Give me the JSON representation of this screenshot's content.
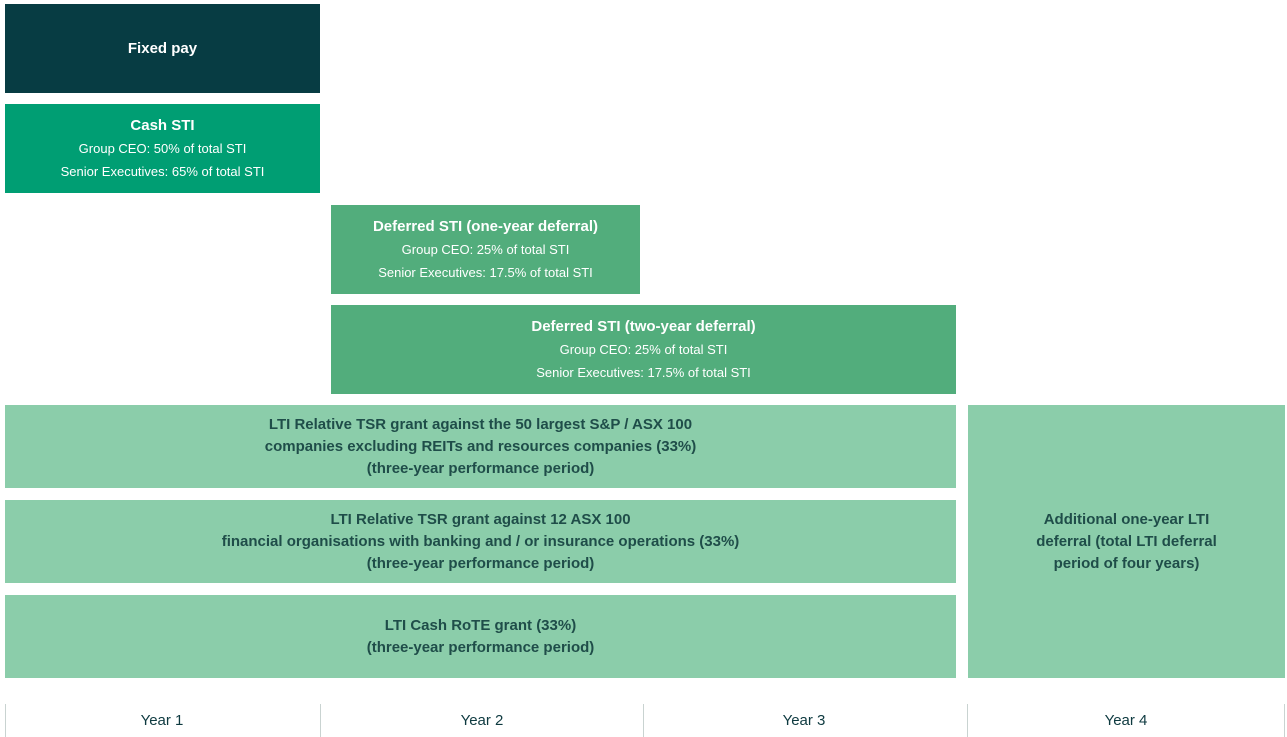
{
  "fixed_pay": {
    "title": "Fixed pay"
  },
  "cash_sti": {
    "title": "Cash STI",
    "lines": [
      "Group CEO: 50% of total STI",
      "Senior Executives: 65% of total STI"
    ]
  },
  "deferred_sti_one": {
    "title": "Deferred STI (one-year deferral)",
    "lines": [
      "Group CEO: 25% of total STI",
      "Senior Executives: 17.5% of total STI"
    ]
  },
  "deferred_sti_two": {
    "title": "Deferred STI (two-year deferral)",
    "lines": [
      "Group CEO: 25% of total STI",
      "Senior Executives: 17.5% of total STI"
    ]
  },
  "lti_tsr_sp": {
    "lines": [
      "LTI Relative TSR grant against the 50 largest S&P / ASX 100",
      "companies excluding REITs and resources companies (33%)",
      "(three-year performance period)"
    ]
  },
  "lti_tsr_fin": {
    "lines": [
      "LTI Relative TSR grant against 12 ASX 100",
      "financial organisations with banking and / or insurance operations (33%)",
      "(three-year performance period)"
    ]
  },
  "lti_rote": {
    "lines": [
      "LTI Cash RoTE grant (33%)",
      "(three-year performance period)"
    ]
  },
  "lti_additional": {
    "lines": [
      "Additional one-year LTI",
      "deferral (total LTI deferral",
      "period of four years)"
    ]
  },
  "timeline": {
    "years": [
      "Year 1",
      "Year 2",
      "Year 3",
      "Year 4"
    ]
  }
}
